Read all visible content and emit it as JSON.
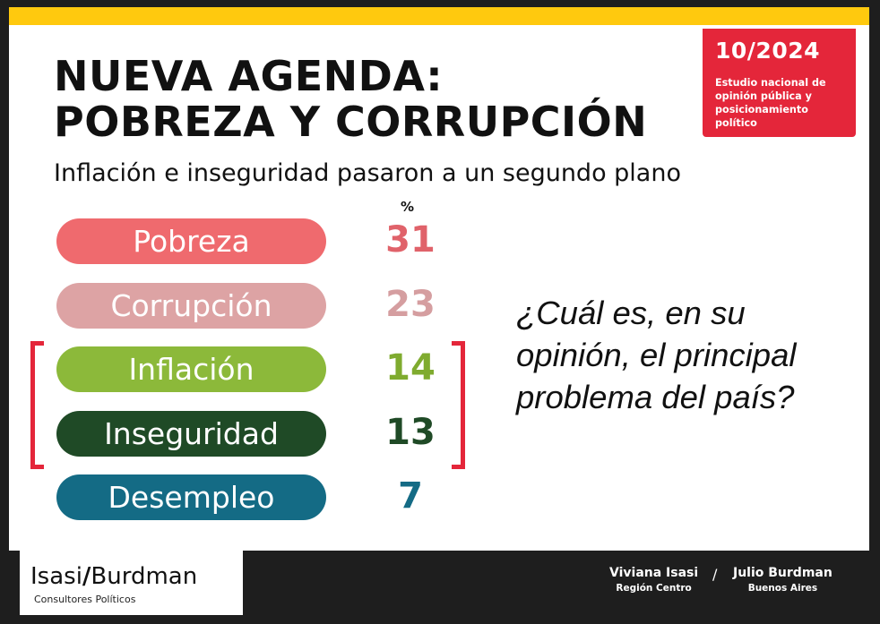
{
  "header": {
    "badge_date": "10/2024",
    "badge_text": "Estudio nacional de opinión pública y posicionamiento político",
    "title_line1": "NUEVA AGENDA:",
    "title_line2": "POBREZA Y CORRUPCIÓN",
    "subtitle": "Inflación e inseguridad pasaron a un segundo plano"
  },
  "question": "¿Cuál es, en su opinión, el principal problema del país?",
  "chart_data": {
    "type": "bar",
    "unit_label": "%",
    "categories": [
      "Pobreza",
      "Corrupción",
      "Inflación",
      "Inseguridad",
      "Desempleo"
    ],
    "values": [
      31,
      23,
      14,
      13,
      7
    ],
    "colors": {
      "Pobreza": {
        "pill": "#ef6a6e",
        "value": "#e0626a"
      },
      "Corrupción": {
        "pill": "#dda3a4",
        "value": "#d59ea0"
      },
      "Inflación": {
        "pill": "#8cb93a",
        "value": "#7fab2f"
      },
      "Inseguridad": {
        "pill": "#1f4a26",
        "value": "#1f4a26"
      },
      "Desempleo": {
        "pill": "#146b85",
        "value": "#146b85"
      }
    },
    "highlighted": [
      "Inflación",
      "Inseguridad"
    ]
  },
  "footer": {
    "logo_left": "Isasi",
    "logo_slash": "/",
    "logo_right": "Burdman",
    "logo_sub": "Consultores Políticos",
    "credit1_name": "Viviana Isasi",
    "credit1_region": "Región Centro",
    "separator": "/",
    "credit2_name": "Julio Burdman",
    "credit2_region": "Buenos Aires"
  },
  "colors": {
    "top_bar": "#ffc90e",
    "badge": "#e4263a",
    "bracket": "#e4263a",
    "background": "#1e1e1e"
  }
}
